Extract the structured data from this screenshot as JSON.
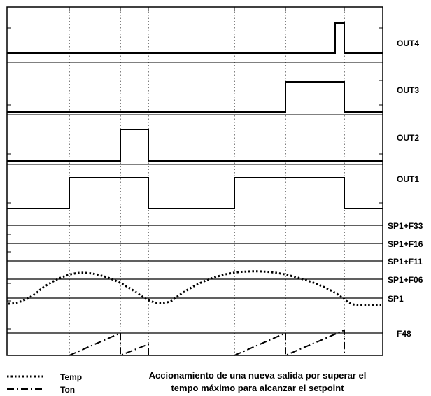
{
  "diagram": {
    "channel_labels": {
      "out4": "OUT4",
      "out3": "OUT3",
      "out2": "OUT2",
      "out1": "OUT1",
      "sp1_f33": "SP1+F33",
      "sp1_f16": "SP1+F16",
      "sp1_f11": "SP1+F11",
      "sp1_f06": "SP1+F06",
      "sp1": "SP1",
      "f48": "F48"
    },
    "legend": {
      "temp": "Temp",
      "ton": "Ton"
    },
    "caption": {
      "line1": "Accionamiento de una nueva salida por superar el",
      "line2": "tempo máximo para alcanzar el setpoint"
    },
    "colors": {
      "line": "#000000",
      "background": "#ffffff"
    }
  }
}
